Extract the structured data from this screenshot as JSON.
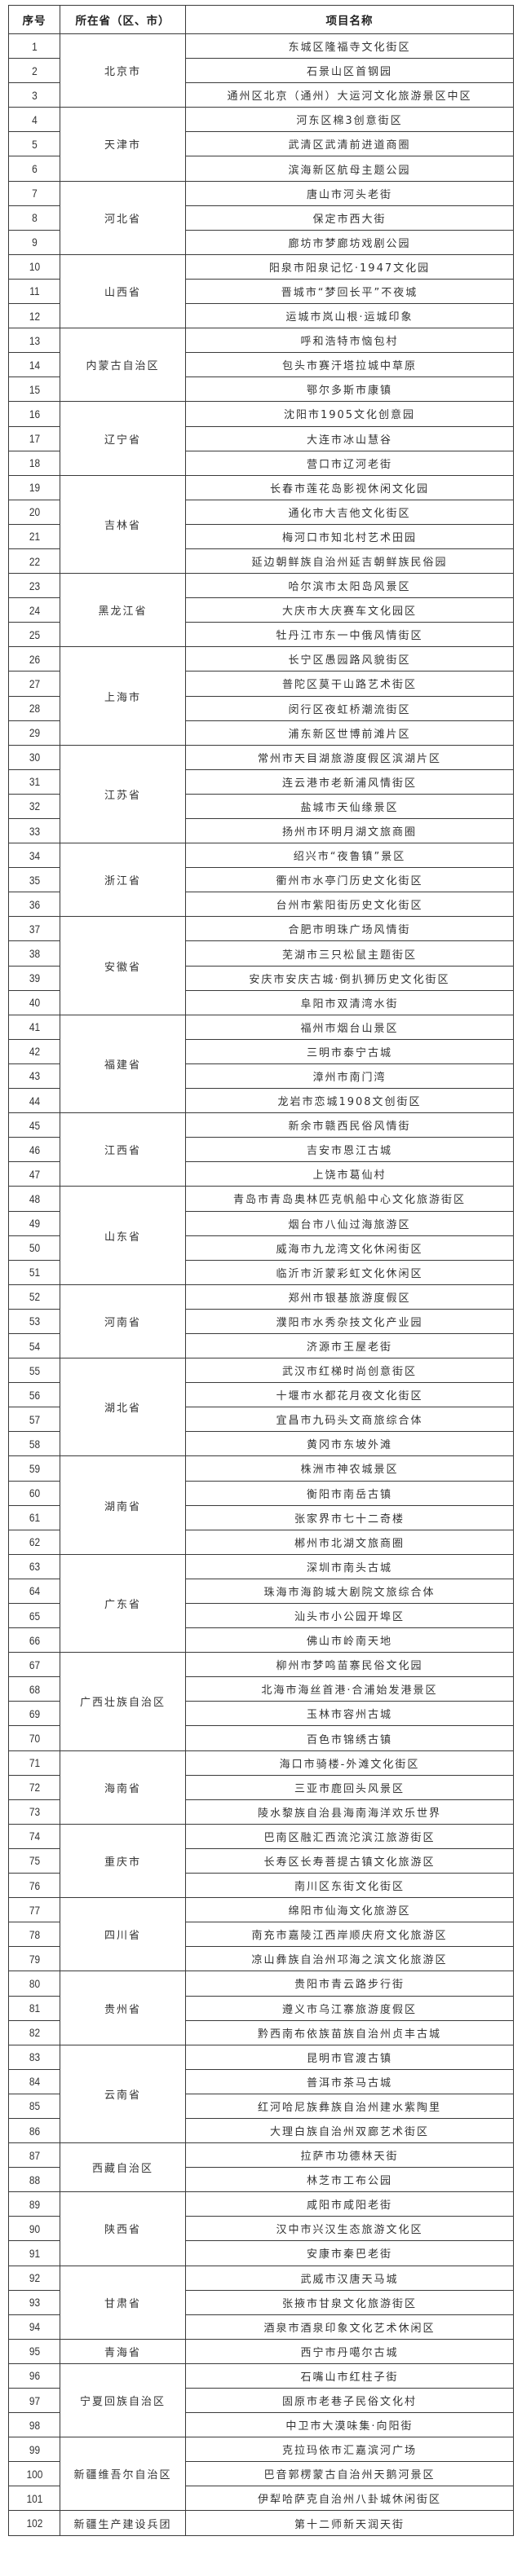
{
  "header": {
    "no": "序号",
    "province": "所在省（区、市）",
    "project": "项目名称"
  },
  "groups": [
    {
      "province": "北京市",
      "items": [
        [
          "1",
          "东城区隆福寺文化街区"
        ],
        [
          "2",
          "石景山区首钢园"
        ],
        [
          "3",
          "通州区北京（通州）大运河文化旅游景区中区"
        ]
      ]
    },
    {
      "province": "天津市",
      "items": [
        [
          "4",
          "河东区棉3创意街区"
        ],
        [
          "5",
          "武清区武清前进道商圈"
        ],
        [
          "6",
          "滨海新区航母主题公园"
        ]
      ]
    },
    {
      "province": "河北省",
      "items": [
        [
          "7",
          "唐山市河头老街"
        ],
        [
          "8",
          "保定市西大街"
        ],
        [
          "9",
          "廊坊市梦廊坊戏剧公园"
        ]
      ]
    },
    {
      "province": "山西省",
      "items": [
        [
          "10",
          "阳泉市阳泉记忆·1947文化园"
        ],
        [
          "11",
          "晋城市“梦回长平”不夜城"
        ],
        [
          "12",
          "运城市岚山根·运城印象"
        ]
      ]
    },
    {
      "province": "内蒙古自治区",
      "items": [
        [
          "13",
          "呼和浩特市恼包村"
        ],
        [
          "14",
          "包头市赛汗塔拉城中草原"
        ],
        [
          "15",
          "鄂尔多斯市康镇"
        ]
      ]
    },
    {
      "province": "辽宁省",
      "items": [
        [
          "16",
          "沈阳市1905文化创意园"
        ],
        [
          "17",
          "大连市冰山慧谷"
        ],
        [
          "18",
          "营口市辽河老街"
        ]
      ]
    },
    {
      "province": "吉林省",
      "items": [
        [
          "19",
          "长春市莲花岛影视休闲文化园"
        ],
        [
          "20",
          "通化市大吉他文化街区"
        ],
        [
          "21",
          "梅河口市知北村艺术田园"
        ],
        [
          "22",
          "延边朝鲜族自治州延吉朝鲜族民俗园"
        ]
      ]
    },
    {
      "province": "黑龙江省",
      "items": [
        [
          "23",
          "哈尔滨市太阳岛风景区"
        ],
        [
          "24",
          "大庆市大庆赛车文化园区"
        ],
        [
          "25",
          "牡丹江市东一中俄风情街区"
        ]
      ]
    },
    {
      "province": "上海市",
      "items": [
        [
          "26",
          "长宁区愚园路风貌街区"
        ],
        [
          "27",
          "普陀区莫干山路艺术街区"
        ],
        [
          "28",
          "闵行区夜虹桥潮流街区"
        ],
        [
          "29",
          "浦东新区世博前滩片区"
        ]
      ]
    },
    {
      "province": "江苏省",
      "items": [
        [
          "30",
          "常州市天目湖旅游度假区滨湖片区"
        ],
        [
          "31",
          "连云港市老新浦风情街区"
        ],
        [
          "32",
          "盐城市天仙缘景区"
        ],
        [
          "33",
          "扬州市环明月湖文旅商圈"
        ]
      ]
    },
    {
      "province": "浙江省",
      "items": [
        [
          "34",
          "绍兴市“夜鲁镇”景区"
        ],
        [
          "35",
          "衢州市水亭门历史文化街区"
        ],
        [
          "36",
          "台州市紫阳街历史文化街区"
        ]
      ]
    },
    {
      "province": "安徽省",
      "items": [
        [
          "37",
          "合肥市明珠广场风情街"
        ],
        [
          "38",
          "芜湖市三只松鼠主题街区"
        ],
        [
          "39",
          "安庆市安庆古城·倒扒狮历史文化街区"
        ],
        [
          "40",
          "阜阳市双清湾水街"
        ]
      ]
    },
    {
      "province": "福建省",
      "items": [
        [
          "41",
          "福州市烟台山景区"
        ],
        [
          "42",
          "三明市泰宁古城"
        ],
        [
          "43",
          "漳州市南门湾"
        ],
        [
          "44",
          "龙岩市恋城1908文创街区"
        ]
      ]
    },
    {
      "province": "江西省",
      "items": [
        [
          "45",
          "新余市赣西民俗风情街"
        ],
        [
          "46",
          "吉安市恩江古城"
        ],
        [
          "47",
          "上饶市葛仙村"
        ]
      ]
    },
    {
      "province": "山东省",
      "items": [
        [
          "48",
          "青岛市青岛奥林匹克帆船中心文化旅游街区"
        ],
        [
          "49",
          "烟台市八仙过海旅游区"
        ],
        [
          "50",
          "威海市九龙湾文化休闲街区"
        ],
        [
          "51",
          "临沂市沂蒙彩虹文化休闲区"
        ]
      ]
    },
    {
      "province": "河南省",
      "items": [
        [
          "52",
          "郑州市银基旅游度假区"
        ],
        [
          "53",
          "濮阳市水秀杂技文化产业园"
        ],
        [
          "54",
          "济源市王屋老街"
        ]
      ]
    },
    {
      "province": "湖北省",
      "items": [
        [
          "55",
          "武汉市红梯时尚创意街区"
        ],
        [
          "56",
          "十堰市水都花月夜文化街区"
        ],
        [
          "57",
          "宜昌市九码头文商旅综合体"
        ],
        [
          "58",
          "黄冈市东坡外滩"
        ]
      ]
    },
    {
      "province": "湖南省",
      "items": [
        [
          "59",
          "株洲市神农城景区"
        ],
        [
          "60",
          "衡阳市南岳古镇"
        ],
        [
          "61",
          "张家界市七十二奇楼"
        ],
        [
          "62",
          "郴州市北湖文旅商圈"
        ]
      ]
    },
    {
      "province": "广东省",
      "items": [
        [
          "63",
          "深圳市南头古城"
        ],
        [
          "64",
          "珠海市海韵城大剧院文旅综合体"
        ],
        [
          "65",
          "汕头市小公园开埠区"
        ],
        [
          "66",
          "佛山市岭南天地"
        ]
      ]
    },
    {
      "province": "广西壮族自治区",
      "items": [
        [
          "67",
          "柳州市梦鸣苗寨民俗文化园"
        ],
        [
          "68",
          "北海市海丝首港·合浦始发港景区"
        ],
        [
          "69",
          "玉林市容州古城"
        ],
        [
          "70",
          "百色市锦绣古镇"
        ]
      ]
    },
    {
      "province": "海南省",
      "items": [
        [
          "71",
          "海口市骑楼-外滩文化街区"
        ],
        [
          "72",
          "三亚市鹿回头风景区"
        ],
        [
          "73",
          "陵水黎族自治县海南海洋欢乐世界"
        ]
      ]
    },
    {
      "province": "重庆市",
      "items": [
        [
          "74",
          "巴南区融汇西流沱滨江旅游街区"
        ],
        [
          "75",
          "长寿区长寿菩提古镇文化旅游区"
        ],
        [
          "76",
          "南川区东街文化街区"
        ]
      ]
    },
    {
      "province": "四川省",
      "items": [
        [
          "77",
          "绵阳市仙海文化旅游区"
        ],
        [
          "78",
          "南充市嘉陵江西岸顺庆府文化旅游区"
        ],
        [
          "79",
          "凉山彝族自治州邛海之滨文化旅游区"
        ]
      ]
    },
    {
      "province": "贵州省",
      "items": [
        [
          "80",
          "贵阳市青云路步行街"
        ],
        [
          "81",
          "遵义市乌江寨旅游度假区"
        ],
        [
          "82",
          "黔西南布依族苗族自治州贞丰古城"
        ]
      ]
    },
    {
      "province": "云南省",
      "items": [
        [
          "83",
          "昆明市官渡古镇"
        ],
        [
          "84",
          "普洱市茶马古城"
        ],
        [
          "85",
          "红河哈尼族彝族自治州建水紫陶里"
        ],
        [
          "86",
          "大理白族自治州双廊艺术街区"
        ]
      ]
    },
    {
      "province": "西藏自治区",
      "items": [
        [
          "87",
          "拉萨市功德林天街"
        ],
        [
          "88",
          "林芝市工布公园"
        ]
      ]
    },
    {
      "province": "陕西省",
      "items": [
        [
          "89",
          "咸阳市咸阳老街"
        ],
        [
          "90",
          "汉中市兴汉生态旅游文化区"
        ],
        [
          "91",
          "安康市秦巴老街"
        ]
      ]
    },
    {
      "province": "甘肃省",
      "items": [
        [
          "92",
          "武威市汉唐天马城"
        ],
        [
          "93",
          "张掖市甘泉文化旅游街区"
        ],
        [
          "94",
          "酒泉市酒泉印象文化艺术休闲区"
        ]
      ]
    },
    {
      "province": "青海省",
      "items": [
        [
          "95",
          "西宁市丹噶尔古城"
        ]
      ]
    },
    {
      "province": "宁夏回族自治区",
      "items": [
        [
          "96",
          "石嘴山市红柱子街"
        ],
        [
          "97",
          "固原市老巷子民俗文化村"
        ],
        [
          "98",
          "中卫市大漠味集·向阳街"
        ]
      ]
    },
    {
      "province": "新疆维吾尔自治区",
      "items": [
        [
          "99",
          "克拉玛依市汇嘉滨河广场"
        ],
        [
          "100",
          "巴音郭楞蒙古自治州天鹅河景区"
        ],
        [
          "101",
          "伊犁哈萨克自治州八卦城休闲街区"
        ]
      ]
    },
    {
      "province": "新疆生产建设兵团",
      "items": [
        [
          "102",
          "第十二师新天润天街"
        ]
      ]
    }
  ]
}
